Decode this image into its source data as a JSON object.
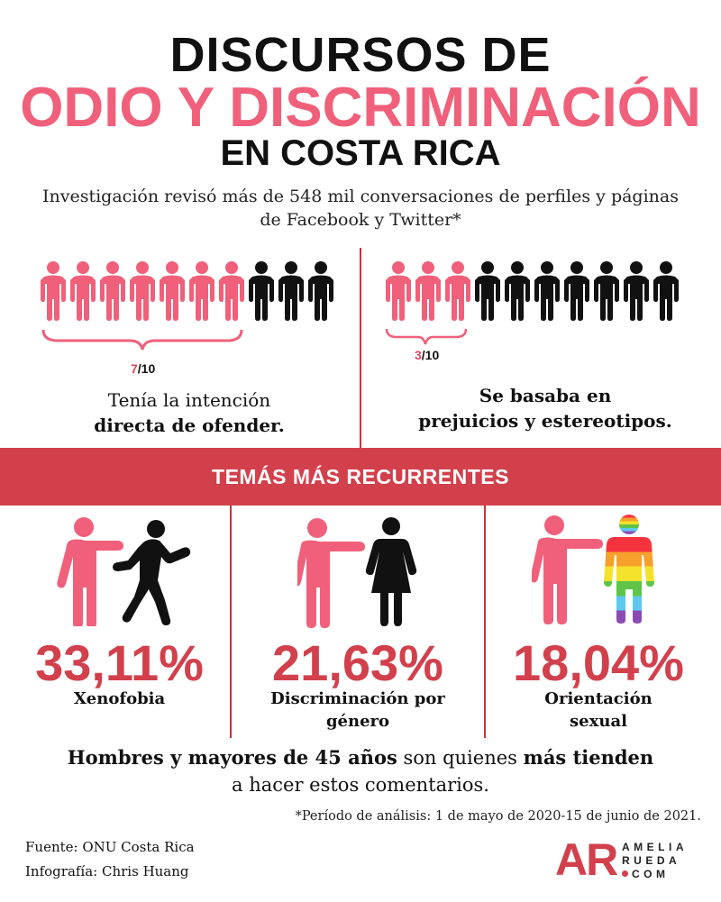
{
  "title": {
    "line1": "DISCURSOS DE",
    "line2": "ODIO Y DISCRIMINACIÓN",
    "line3": "EN COSTA RICA"
  },
  "subtitle": "Investigación revisó más de 548 mil conversaciones de perfiles y páginas de Facebook y Twitter*",
  "stat_left": {
    "num": "7",
    "den": "/10",
    "highlighted": 7,
    "total": 10,
    "desc_line1": "Tenía la intención",
    "desc_line2": "directa de ofender."
  },
  "stat_right": {
    "num": "3",
    "den": "/10",
    "highlighted": 3,
    "total": 10,
    "desc_line1": "Se basaba en",
    "desc_line2": "prejuicios y estereotipos."
  },
  "banner": "TEMÁS MÁS RECURRENTES",
  "topics": [
    {
      "percent": "33,11%",
      "label_line1": "Xenofobia",
      "label_line2": ""
    },
    {
      "percent": "21,63%",
      "label_line1": "Discriminación por",
      "label_line2": "género"
    },
    {
      "percent": "18,04%",
      "label_line1": "Orientación",
      "label_line2": "sexual"
    }
  ],
  "conclusion": {
    "bold1": "Hombres y mayores de 45 años",
    "plain1": " son quienes ",
    "bold2": "más tienden",
    "line2": "a hacer estos comentarios."
  },
  "footnote": "*Período de análisis: 1 de mayo de 2020-15 de junio de 2021.",
  "credits": {
    "source": "Fuente:  ONU Costa Rica",
    "graphic": "Infografía: Chris Huang"
  },
  "logo": {
    "mark": "AR",
    "line1": "AMELIA",
    "line2": "RUEDA",
    "line3": "COM"
  },
  "colors": {
    "pink": "#f0607a",
    "red": "#d2404c",
    "black": "#111111"
  },
  "icons": [
    "person-icon",
    "pointing-person-icon",
    "foreign-person-icon",
    "woman-icon",
    "rainbow-person-icon"
  ]
}
